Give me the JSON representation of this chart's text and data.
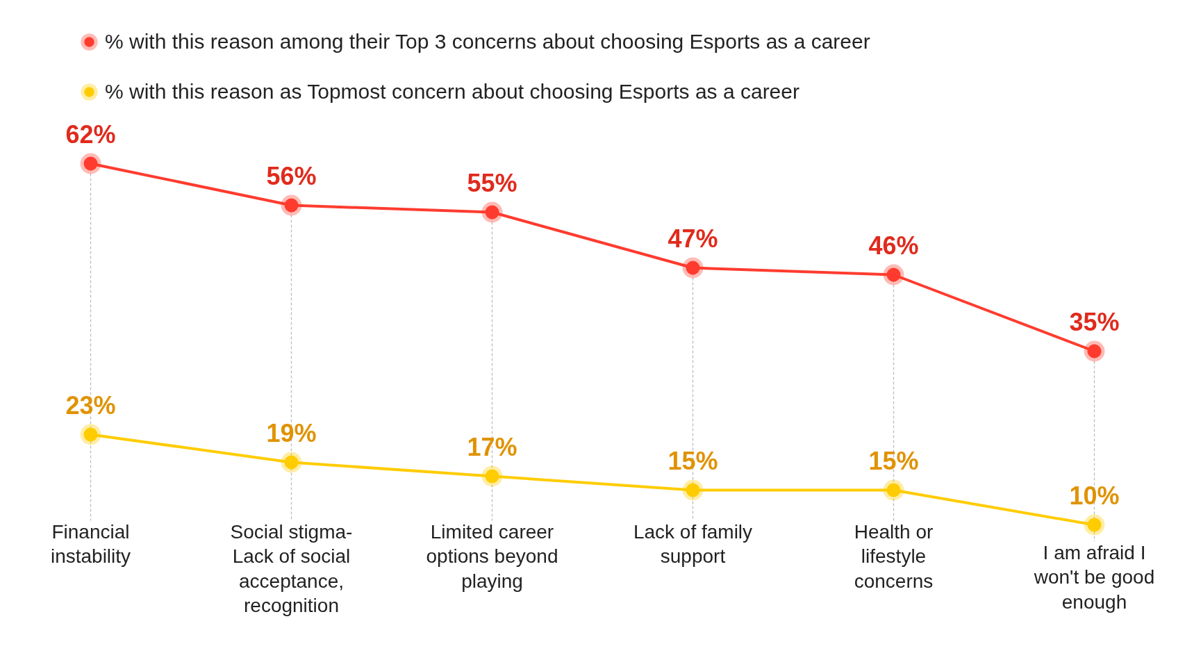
{
  "chart_data": {
    "type": "line",
    "categories": [
      "Financial instability",
      "Social stigma- Lack of social acceptance, recognition",
      "Limited career options beyond playing",
      "Lack of family support",
      "Health or lifestyle concerns",
      "I am afraid I won't be good enough"
    ],
    "series": [
      {
        "name": "% with this reason among their Top 3 concerns about choosing Esports as a career",
        "color": "#ff3b2f",
        "values": [
          62,
          56,
          55,
          47,
          46,
          35
        ],
        "value_labels": [
          "62%",
          "56%",
          "55%",
          "47%",
          "46%",
          "35%"
        ]
      },
      {
        "name": "% with this reason as Topmost concern about choosing Esports as a career",
        "color": "#ffcc00",
        "values": [
          23,
          19,
          17,
          15,
          15,
          10
        ],
        "value_labels": [
          "23%",
          "19%",
          "17%",
          "15%",
          "15%",
          "10%"
        ]
      }
    ],
    "legend": "top left",
    "grid": "x",
    "marker": "circle",
    "line_style": "solid"
  }
}
